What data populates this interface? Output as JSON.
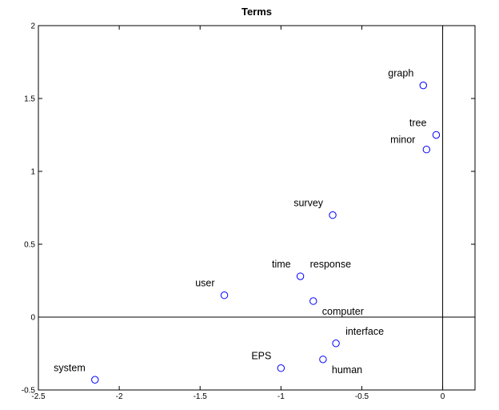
{
  "chart_data": {
    "type": "scatter",
    "title": "Terms",
    "xlabel": "",
    "ylabel": "",
    "xlim": [
      -2.5,
      0.2
    ],
    "ylim": [
      -0.5,
      2
    ],
    "xticks": [
      -2.5,
      -2,
      -1.5,
      -1,
      -0.5,
      0
    ],
    "xtick_labels": [
      "-2.5",
      "-2",
      "-1.5",
      "-1",
      "-0.5",
      "0"
    ],
    "yticks": [
      -0.5,
      0,
      0.5,
      1,
      1.5,
      2
    ],
    "ytick_labels": [
      "-0.5",
      "0",
      "0.5",
      "1",
      "1.5",
      "2"
    ],
    "grid": false,
    "reference_lines": {
      "x": 0,
      "y": 0
    },
    "marker": "circle-open",
    "marker_color": "#0000ff",
    "points": [
      {
        "label": "graph",
        "x": -0.12,
        "y": 1.59,
        "label_pos": "upper-left"
      },
      {
        "label": "tree",
        "x": -0.04,
        "y": 1.25,
        "label_pos": "upper-left"
      },
      {
        "label": "minor",
        "x": -0.1,
        "y": 1.15,
        "label_pos": "left"
      },
      {
        "label": "survey",
        "x": -0.68,
        "y": 0.7,
        "label_pos": "upper-left"
      },
      {
        "label": "time",
        "x": -0.88,
        "y": 0.28,
        "label_pos": "upper-left"
      },
      {
        "label": "response",
        "x": -0.88,
        "y": 0.28,
        "label_pos": "upper-right"
      },
      {
        "label": "user",
        "x": -1.35,
        "y": 0.15,
        "label_pos": "upper-left"
      },
      {
        "label": "computer",
        "x": -0.8,
        "y": 0.11,
        "label_pos": "lower-right"
      },
      {
        "label": "interface",
        "x": -0.66,
        "y": -0.18,
        "label_pos": "upper-right"
      },
      {
        "label": "EPS",
        "x": -1.0,
        "y": -0.35,
        "label_pos": "upper-left"
      },
      {
        "label": "human",
        "x": -0.74,
        "y": -0.29,
        "label_pos": "lower-right"
      },
      {
        "label": "system",
        "x": -2.15,
        "y": -0.43,
        "label_pos": "upper-left"
      }
    ]
  }
}
